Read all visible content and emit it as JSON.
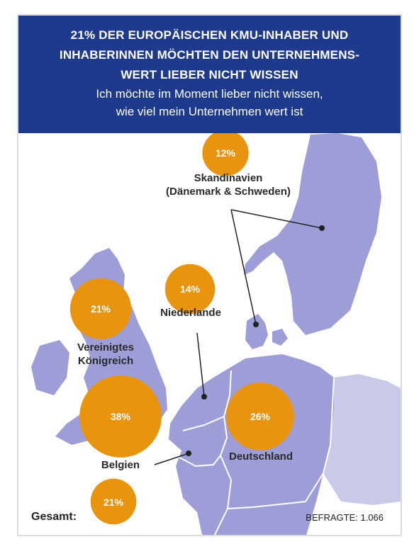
{
  "header": {
    "title_lines": [
      "21% DER EUROPÄISCHEN KMU-INHABER UND",
      "INHABERINNEN MÖCHTEN DEN UNTERNEHMENS-",
      "WERT LIEBER NICHT WISSEN"
    ],
    "subtitle_lines": [
      "Ich möchte im Moment lieber nicht wissen,",
      "wie viel mein Unternehmen wert ist"
    ]
  },
  "colors": {
    "header_bg": "#1d3a8c",
    "land": "#9d9ed8",
    "bubble": "#e8940f",
    "leader_line": "#222222"
  },
  "regions": [
    {
      "id": "skandinavien",
      "label_lines": [
        "Skandinavien",
        "(Dänemark & Schweden)"
      ],
      "value": "12%",
      "percent": 12
    },
    {
      "id": "niederlande",
      "label_lines": [
        "Niederlande"
      ],
      "value": "14%",
      "percent": 14
    },
    {
      "id": "vereinigtes-koenigreich",
      "label_lines": [
        "Vereinigtes",
        "Königreich"
      ],
      "value": "21%",
      "percent": 21
    },
    {
      "id": "belgien",
      "label_lines": [
        "Belgien"
      ],
      "value": "38%",
      "percent": 38
    },
    {
      "id": "deutschland",
      "label_lines": [
        "Deutschland"
      ],
      "value": "26%",
      "percent": 26
    }
  ],
  "total": {
    "label": "Gesamt:",
    "value": "21%",
    "percent": 21
  },
  "respondents": "BEFRAGTE: 1.066"
}
